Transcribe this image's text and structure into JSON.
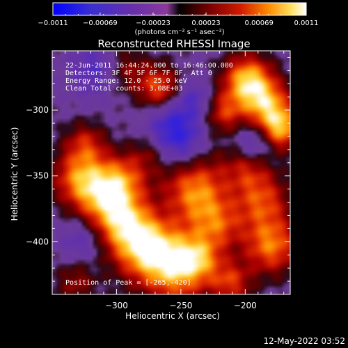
{
  "chart_data": {
    "type": "heatmap",
    "title": "Reconstructed RHESSI Image",
    "xlabel": "Heliocentric X (arcsec)",
    "ylabel": "Heliocentric Y (arcsec)",
    "xlim": [
      -350,
      -165
    ],
    "ylim": [
      -440,
      -255
    ],
    "x_ticks": [
      -300,
      -250,
      -200
    ],
    "x_tick_labels": [
      "−300",
      "−250",
      "−200"
    ],
    "y_ticks": [
      -300,
      -350,
      -400
    ],
    "y_tick_labels": [
      "−300",
      "−350",
      "−400"
    ],
    "colorbar": {
      "range": [
        -0.0011,
        0.0011
      ],
      "tick_labels": [
        "−0.0011",
        "−0.00069",
        "−0.00023",
        "0.00023",
        "0.00069",
        "0.0011"
      ],
      "units": "(photons cm⁻² s⁻¹ asec⁻²)"
    },
    "annotations": [
      "22-Jun-2011 16:44:24.000 to 16:46:00.000",
      "Detectors: 3F 4F 5F 6F 7F 8F, Att 0",
      "Energy Range: 12.0 - 25.0 keV",
      "Clean     Total counts: 3.08E+03"
    ],
    "peak_label": "Position of Peak = [-265,-420]",
    "peak_position": [
      -265,
      -420
    ],
    "grid": false
  },
  "footer": {
    "date": "12-May-2022 03:52"
  }
}
